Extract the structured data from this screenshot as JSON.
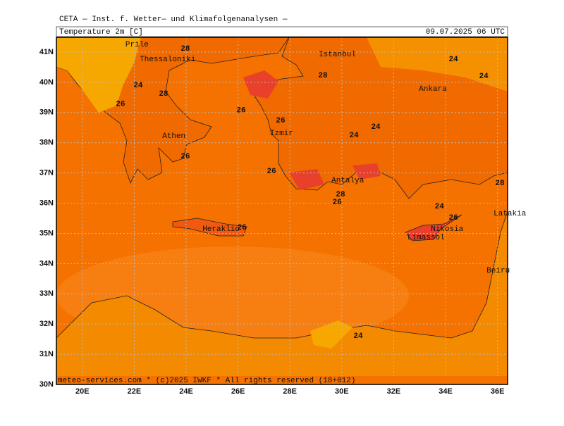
{
  "header": {
    "title": "CETA — Inst. f. Wetter— und Klimafolgenanalysen —",
    "field": "Temperature 2m [C]",
    "valid_time": "09.07.2025 06 UTC"
  },
  "map": {
    "lonlim": [
      19,
      36.39
    ],
    "latlim": [
      30,
      41.49
    ],
    "lon_ticks": [
      {
        "value": 20,
        "label": "20E"
      },
      {
        "value": 22,
        "label": "22E"
      },
      {
        "value": 24,
        "label": "24E"
      },
      {
        "value": 26,
        "label": "26E"
      },
      {
        "value": 28,
        "label": "28E"
      },
      {
        "value": 30,
        "label": "30E"
      },
      {
        "value": 32,
        "label": "32E"
      },
      {
        "value": 34,
        "label": "34E"
      },
      {
        "value": 36,
        "label": "36E"
      }
    ],
    "lat_ticks": [
      {
        "value": 30,
        "label": "30N"
      },
      {
        "value": 31,
        "label": "31N"
      },
      {
        "value": 32,
        "label": "32N"
      },
      {
        "value": 33,
        "label": "33N"
      },
      {
        "value": 34,
        "label": "34N"
      },
      {
        "value": 35,
        "label": "35N"
      },
      {
        "value": 36,
        "label": "36N"
      },
      {
        "value": 37,
        "label": "37N"
      },
      {
        "value": 38,
        "label": "38N"
      },
      {
        "value": 39,
        "label": "39N"
      },
      {
        "value": 40,
        "label": "40N"
      },
      {
        "value": 41,
        "label": "41N"
      }
    ],
    "cities": [
      {
        "name": "Prile",
        "lon": 21.66,
        "lat": 41.26
      },
      {
        "name": "Thessaloniki",
        "lon": 22.21,
        "lat": 40.77
      },
      {
        "name": "Athen",
        "lon": 23.08,
        "lat": 38.23
      },
      {
        "name": "Izmir",
        "lon": 27.23,
        "lat": 38.32
      },
      {
        "name": "Istanbul",
        "lon": 29.11,
        "lat": 40.93
      },
      {
        "name": "Ankara",
        "lon": 32.97,
        "lat": 39.79
      },
      {
        "name": "Antalya",
        "lon": 29.6,
        "lat": 36.76
      },
      {
        "name": "Heraklio",
        "lon": 24.63,
        "lat": 35.15
      },
      {
        "name": "Nikosia",
        "lon": 33.43,
        "lat": 35.15
      },
      {
        "name": "Limassol",
        "lon": 32.53,
        "lat": 34.87
      },
      {
        "name": "Latakia",
        "lon": 35.85,
        "lat": 35.66
      },
      {
        "name": "Beiru",
        "lon": 35.58,
        "lat": 33.77
      }
    ],
    "contour_labels": [
      {
        "value": 28,
        "lon": 23.97,
        "lat": 41.12
      },
      {
        "value": 24,
        "lon": 22.15,
        "lat": 39.9
      },
      {
        "value": 28,
        "lon": 23.13,
        "lat": 39.62
      },
      {
        "value": 26,
        "lon": 21.47,
        "lat": 39.28
      },
      {
        "value": 28,
        "lon": 29.27,
        "lat": 40.23
      },
      {
        "value": 24,
        "lon": 34.3,
        "lat": 40.77
      },
      {
        "value": 24,
        "lon": 35.47,
        "lat": 40.21
      },
      {
        "value": 26,
        "lon": 26.12,
        "lat": 39.07
      },
      {
        "value": 26,
        "lon": 27.64,
        "lat": 38.74
      },
      {
        "value": 24,
        "lon": 30.47,
        "lat": 38.25
      },
      {
        "value": 24,
        "lon": 31.31,
        "lat": 38.53
      },
      {
        "value": 26,
        "lon": 23.97,
        "lat": 37.55
      },
      {
        "value": 26,
        "lon": 27.29,
        "lat": 37.06
      },
      {
        "value": 28,
        "lon": 29.95,
        "lat": 36.29
      },
      {
        "value": 26,
        "lon": 29.82,
        "lat": 36.03
      },
      {
        "value": 24,
        "lon": 33.76,
        "lat": 35.9
      },
      {
        "value": 26,
        "lon": 34.3,
        "lat": 35.52
      },
      {
        "value": 28,
        "lon": 36.09,
        "lat": 36.66
      },
      {
        "value": 26,
        "lon": 26.15,
        "lat": 35.2
      },
      {
        "value": 24,
        "lon": 30.63,
        "lat": 31.61
      }
    ]
  },
  "footer": "meteo-services.com * (c)2025 IWKF * All rights reserved (18+012)"
}
